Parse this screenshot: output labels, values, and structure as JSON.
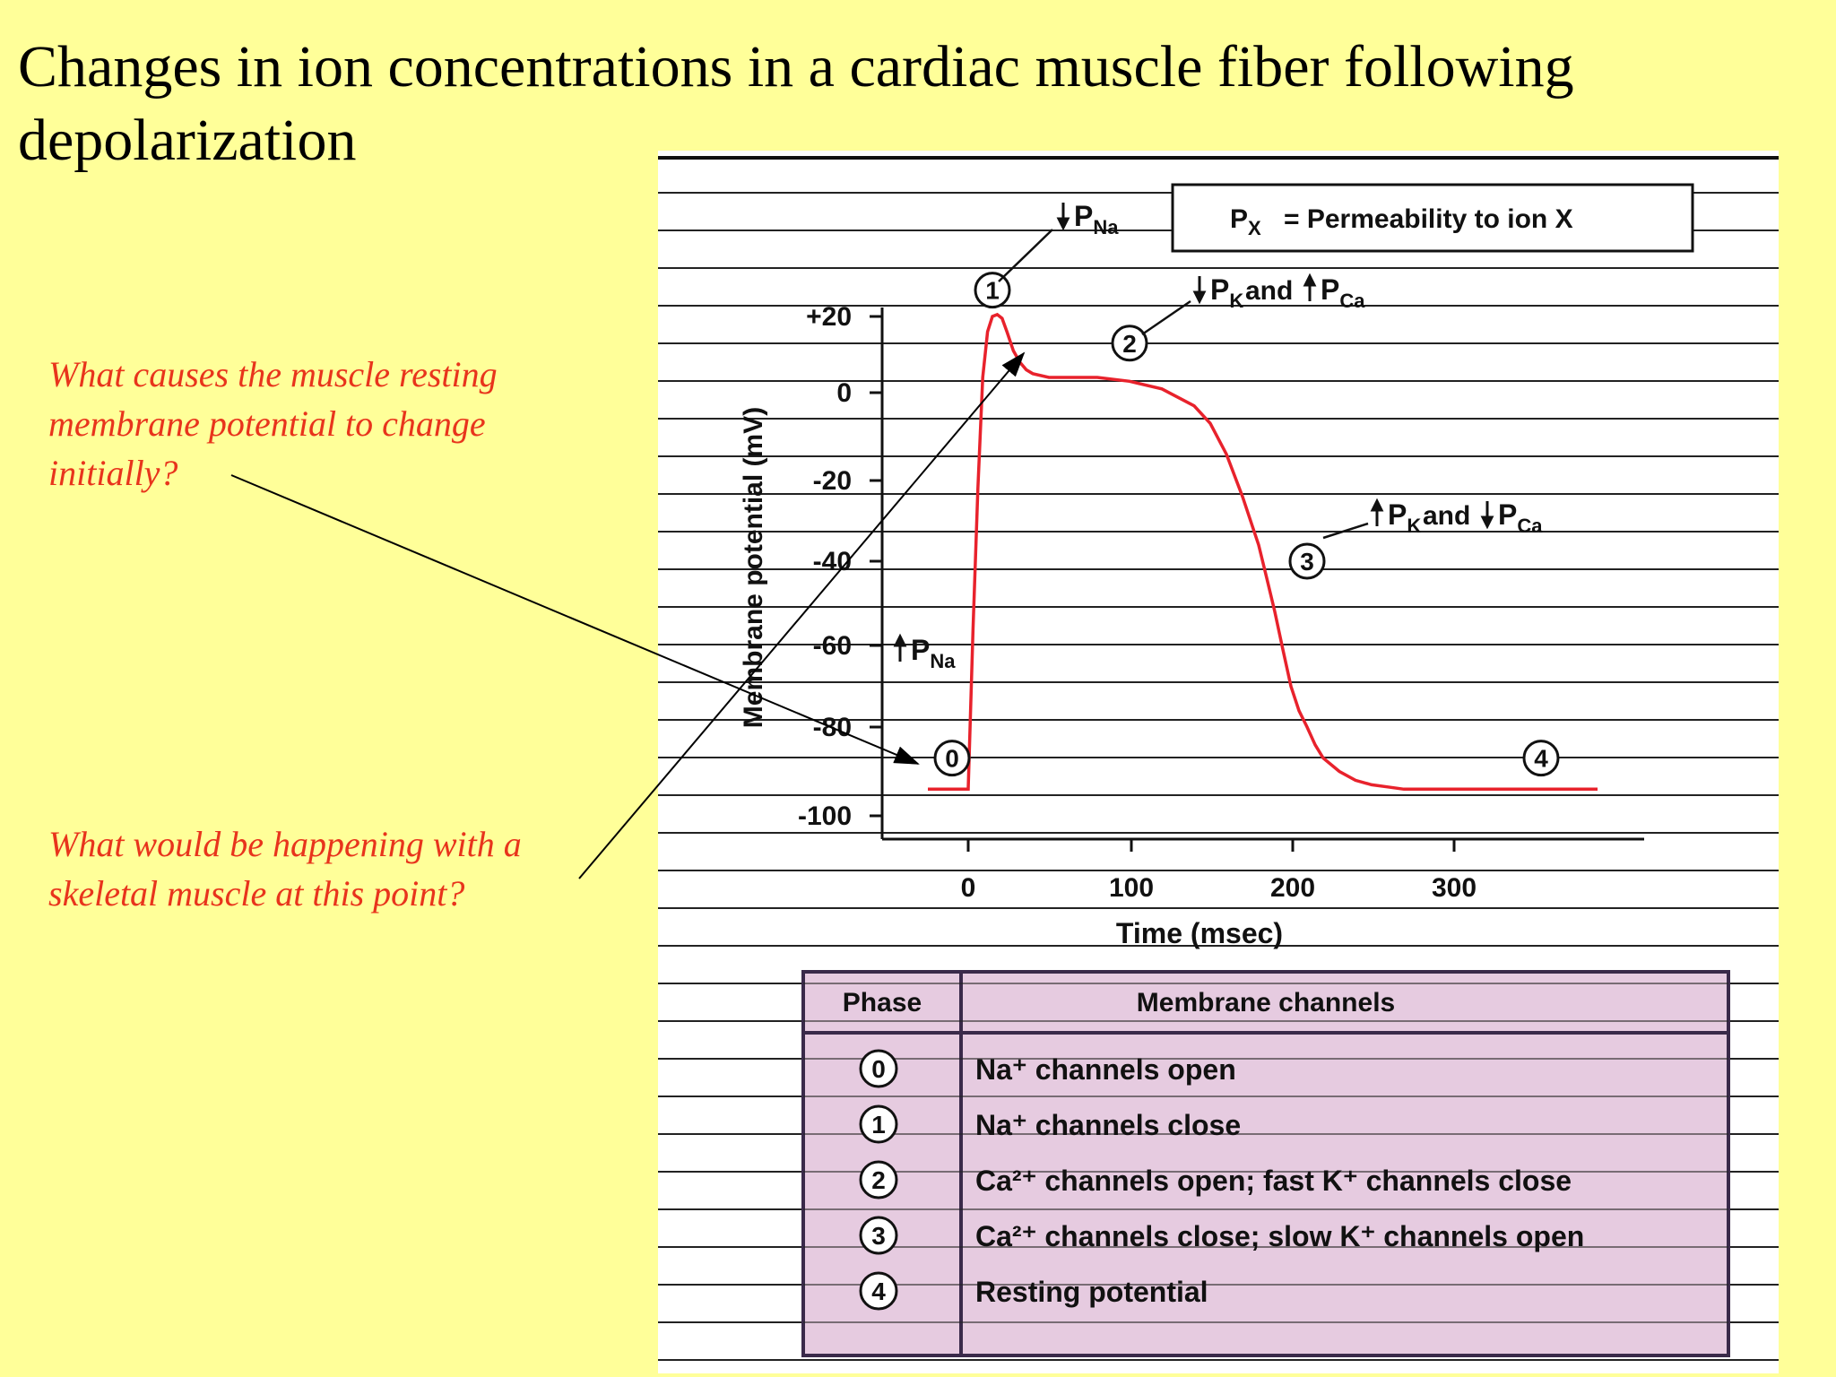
{
  "slide": {
    "title": "Changes in ion concentrations in a cardiac muscle fiber following depolarization",
    "question_1": "What causes the muscle resting membrane potential to change initially?",
    "question_2": "What would be happening with a skeletal muscle at this point?"
  },
  "colors": {
    "background": "#ffff99",
    "question_text": "#e8341c",
    "trace": "#e8222c",
    "table_fill": "#e6cbe0",
    "table_border": "#3a2a4a"
  },
  "legend": {
    "px": "P",
    "px_sub": "X",
    "definition": "=  Permeability to ion X"
  },
  "annotations": [
    {
      "phase": "0",
      "arrow_1": "up",
      "ion_1": "Na",
      "conjunction": "",
      "arrow_2": "",
      "ion_2": ""
    },
    {
      "phase": "1",
      "arrow_1": "down",
      "ion_1": "Na",
      "conjunction": "",
      "arrow_2": "",
      "ion_2": ""
    },
    {
      "phase": "2",
      "arrow_1": "down",
      "ion_1": "K",
      "conjunction": "and",
      "arrow_2": "up",
      "ion_2": "Ca"
    },
    {
      "phase": "3",
      "arrow_1": "up",
      "ion_1": "K",
      "conjunction": "and",
      "arrow_2": "down",
      "ion_2": "Ca"
    }
  ],
  "chart_data": {
    "type": "line",
    "title": "",
    "xlabel": "Time (msec)",
    "ylabel": "Membrane potential (mV)",
    "x_ticks": [
      0,
      100,
      200,
      300
    ],
    "y_ticks": [
      20,
      0,
      -20,
      -40,
      -60,
      -80,
      -100
    ],
    "y_tick_labels": [
      "+20",
      "0",
      "-20",
      "-40",
      "-60",
      "-80",
      "-100"
    ],
    "xlim": [
      -25,
      390
    ],
    "ylim": [
      -105,
      22
    ],
    "grid": false,
    "series": [
      {
        "x": [
          -25,
          -5,
          0,
          3,
          6,
          9,
          12,
          15,
          18,
          21,
          24,
          28,
          32,
          36,
          40,
          50,
          60,
          80,
          100,
          120,
          140,
          150,
          160,
          170,
          180,
          185,
          190,
          195,
          200,
          205,
          210,
          215,
          220,
          230,
          240,
          250,
          260,
          270,
          280,
          290,
          300,
          340,
          390
        ],
        "y": [
          -94,
          -94,
          -94,
          -56,
          -22,
          4,
          16,
          20,
          20.5,
          19.5,
          16,
          11,
          8,
          6,
          5,
          4,
          4,
          4,
          3,
          1,
          -3,
          -7,
          -14,
          -24,
          -36,
          -44,
          -52,
          -61,
          -70,
          -76,
          -80,
          -84,
          -87,
          -90,
          -92,
          -93,
          -93.5,
          -94,
          -94,
          -94,
          -94,
          -94,
          -94
        ]
      }
    ],
    "phase_markers": [
      {
        "phase": "0",
        "x": -10,
        "y": -87
      },
      {
        "phase": "1",
        "x": 15,
        "y": 27
      },
      {
        "phase": "2",
        "x": 100,
        "y": 13
      },
      {
        "phase": "3",
        "x": 210,
        "y": -40
      },
      {
        "phase": "4",
        "x": 355,
        "y": -87
      }
    ]
  },
  "table": {
    "headers": [
      "Phase",
      "Membrane channels"
    ],
    "rows": [
      {
        "phase": "0",
        "channels": "Na⁺ channels open"
      },
      {
        "phase": "1",
        "channels": "Na⁺ channels close"
      },
      {
        "phase": "2",
        "channels": "Ca²⁺ channels open; fast K⁺ channels close"
      },
      {
        "phase": "3",
        "channels": "Ca²⁺ channels close; slow K⁺ channels open"
      },
      {
        "phase": "4",
        "channels": "Resting potential"
      }
    ]
  }
}
